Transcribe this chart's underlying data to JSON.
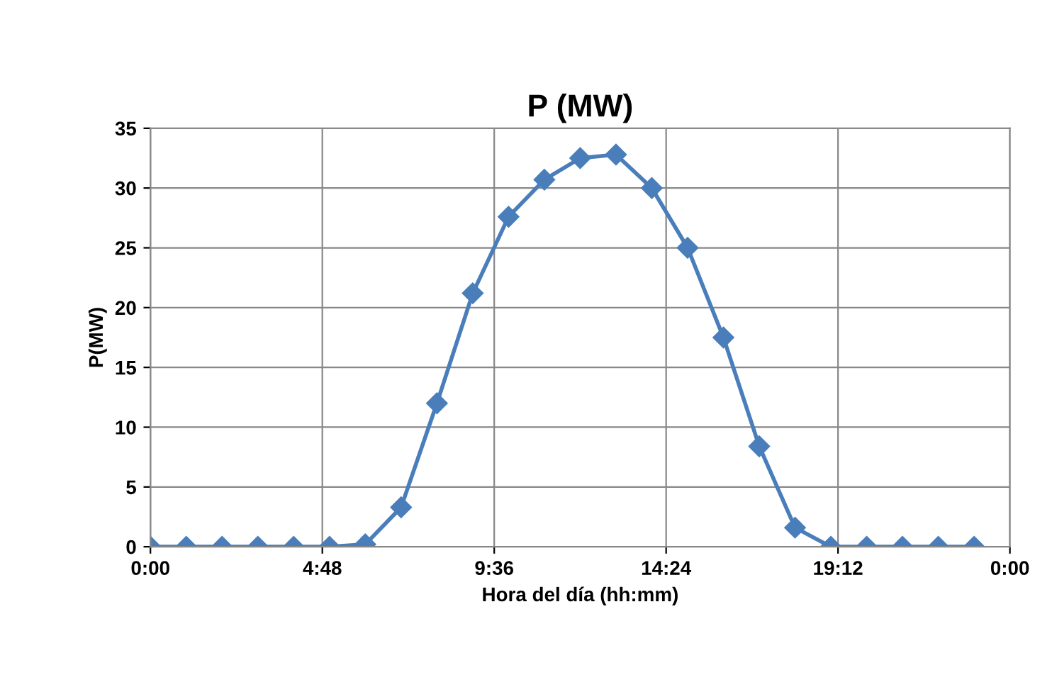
{
  "chart_data": {
    "type": "line",
    "title": "P (MW)",
    "xlabel": "Hora del día (hh:mm)",
    "ylabel": "P(MW)",
    "x": [
      0,
      1,
      2,
      3,
      4,
      5,
      6,
      7,
      8,
      9,
      10,
      11,
      12,
      13,
      14,
      15,
      16,
      17,
      18,
      19,
      20,
      21,
      22,
      23
    ],
    "series": [
      {
        "color": "#4a7ebb",
        "values": [
          0,
          0,
          0,
          0,
          0,
          0,
          0.2,
          3.3,
          12,
          21.2,
          27.6,
          30.7,
          32.5,
          32.8,
          30,
          25,
          17.5,
          8.4,
          1.6,
          0,
          0,
          0,
          0,
          0
        ]
      }
    ],
    "xlim": [
      0,
      24
    ],
    "xticks": [
      {
        "value": 0,
        "label": "0:00"
      },
      {
        "value": 4.8,
        "label": "4:48"
      },
      {
        "value": 9.6,
        "label": "9:36"
      },
      {
        "value": 14.4,
        "label": "14:24"
      },
      {
        "value": 19.2,
        "label": "19:12"
      },
      {
        "value": 24,
        "label": "0:00"
      }
    ],
    "ylim": [
      0,
      35
    ],
    "yticks": [
      0,
      5,
      10,
      15,
      20,
      25,
      30,
      35
    ],
    "grid": true,
    "legend": false,
    "marker": "diamond",
    "line_style": "solid"
  }
}
